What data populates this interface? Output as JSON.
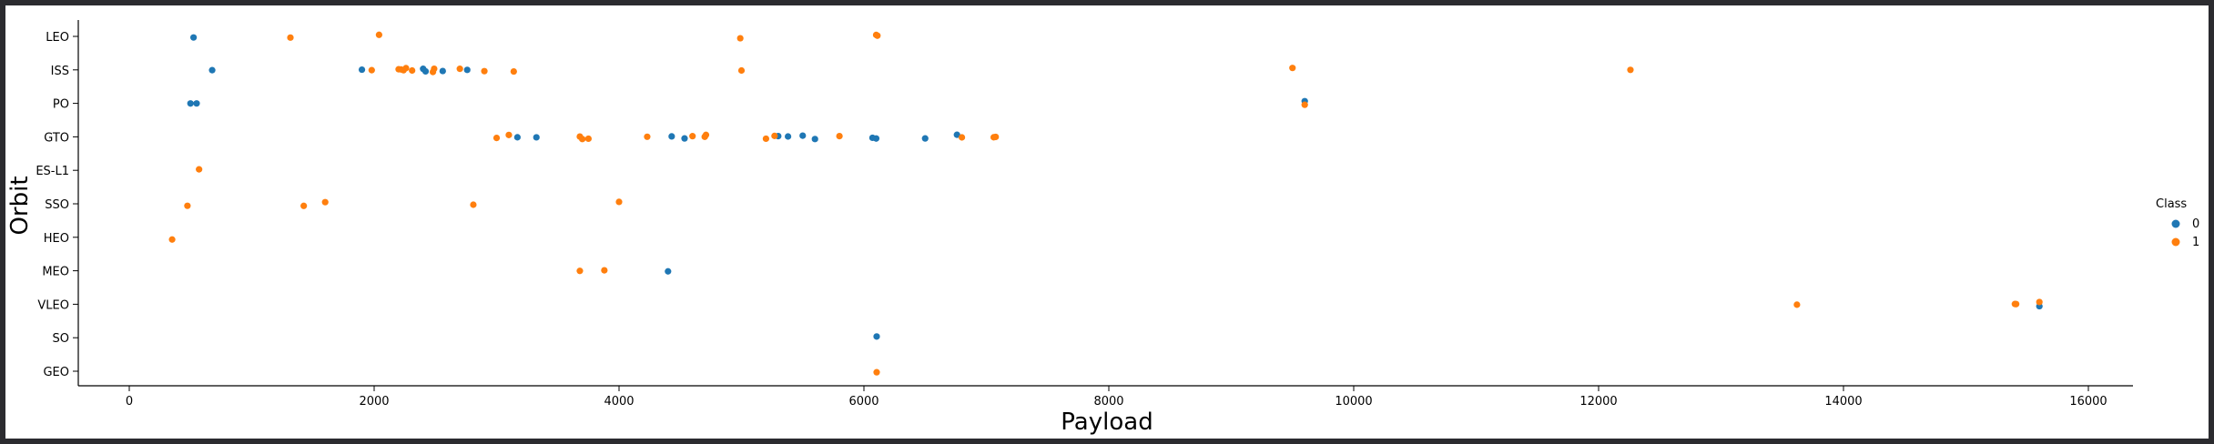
{
  "chart_data": {
    "type": "scatter",
    "title": "",
    "xlabel": "Payload",
    "ylabel": "Orbit",
    "xlim": [
      -500,
      16800
    ],
    "x_ticks": [
      0,
      2000,
      4000,
      6000,
      8000,
      10000,
      12000,
      14000,
      16000
    ],
    "categories": [
      "LEO",
      "ISS",
      "PO",
      "GTO",
      "ES-L1",
      "SSO",
      "HEO",
      "MEO",
      "VLEO",
      "SO",
      "GEO"
    ],
    "grid": false,
    "legend": {
      "title": "Class",
      "position": "right",
      "entries": [
        "0",
        "1"
      ]
    },
    "colors": {
      "0": "#1f77b4",
      "1": "#ff7f0e"
    },
    "series": [
      {
        "name": "0",
        "points": [
          {
            "x": 525,
            "y": "LEO"
          },
          {
            "x": 677,
            "y": "ISS"
          },
          {
            "x": 1900,
            "y": "ISS"
          },
          {
            "x": 2400,
            "y": "ISS"
          },
          {
            "x": 2420,
            "y": "ISS"
          },
          {
            "x": 2560,
            "y": "ISS"
          },
          {
            "x": 2760,
            "y": "ISS"
          },
          {
            "x": 500,
            "y": "PO"
          },
          {
            "x": 550,
            "y": "PO"
          },
          {
            "x": 9600,
            "y": "PO"
          },
          {
            "x": 3170,
            "y": "GTO"
          },
          {
            "x": 3325,
            "y": "GTO"
          },
          {
            "x": 4430,
            "y": "GTO"
          },
          {
            "x": 4535,
            "y": "GTO"
          },
          {
            "x": 5300,
            "y": "GTO"
          },
          {
            "x": 5380,
            "y": "GTO"
          },
          {
            "x": 5500,
            "y": "GTO"
          },
          {
            "x": 5600,
            "y": "GTO"
          },
          {
            "x": 6070,
            "y": "GTO"
          },
          {
            "x": 6100,
            "y": "GTO"
          },
          {
            "x": 6500,
            "y": "GTO"
          },
          {
            "x": 6760,
            "y": "GTO"
          },
          {
            "x": 4400,
            "y": "MEO"
          },
          {
            "x": 15600,
            "y": "VLEO"
          },
          {
            "x": 6104,
            "y": "SO"
          }
        ]
      },
      {
        "name": "1",
        "points": [
          {
            "x": 1316,
            "y": "LEO"
          },
          {
            "x": 2040,
            "y": "LEO"
          },
          {
            "x": 4990,
            "y": "LEO"
          },
          {
            "x": 6100,
            "y": "LEO"
          },
          {
            "x": 6110,
            "y": "LEO"
          },
          {
            "x": 1980,
            "y": "ISS"
          },
          {
            "x": 2200,
            "y": "ISS"
          },
          {
            "x": 2220,
            "y": "ISS"
          },
          {
            "x": 2240,
            "y": "ISS"
          },
          {
            "x": 2260,
            "y": "ISS"
          },
          {
            "x": 2310,
            "y": "ISS"
          },
          {
            "x": 2480,
            "y": "ISS"
          },
          {
            "x": 2490,
            "y": "ISS"
          },
          {
            "x": 2700,
            "y": "ISS"
          },
          {
            "x": 2900,
            "y": "ISS"
          },
          {
            "x": 3140,
            "y": "ISS"
          },
          {
            "x": 5000,
            "y": "ISS"
          },
          {
            "x": 9500,
            "y": "ISS"
          },
          {
            "x": 12260,
            "y": "ISS"
          },
          {
            "x": 9600,
            "y": "PO"
          },
          {
            "x": 3000,
            "y": "GTO"
          },
          {
            "x": 3100,
            "y": "GTO"
          },
          {
            "x": 3680,
            "y": "GTO"
          },
          {
            "x": 3700,
            "y": "GTO"
          },
          {
            "x": 3750,
            "y": "GTO"
          },
          {
            "x": 4230,
            "y": "GTO"
          },
          {
            "x": 4600,
            "y": "GTO"
          },
          {
            "x": 4700,
            "y": "GTO"
          },
          {
            "x": 4710,
            "y": "GTO"
          },
          {
            "x": 5200,
            "y": "GTO"
          },
          {
            "x": 5270,
            "y": "GTO"
          },
          {
            "x": 5800,
            "y": "GTO"
          },
          {
            "x": 6800,
            "y": "GTO"
          },
          {
            "x": 7060,
            "y": "GTO"
          },
          {
            "x": 7076,
            "y": "GTO"
          },
          {
            "x": 570,
            "y": "ES-L1"
          },
          {
            "x": 475,
            "y": "SSO"
          },
          {
            "x": 1425,
            "y": "SSO"
          },
          {
            "x": 1600,
            "y": "SSO"
          },
          {
            "x": 2810,
            "y": "SSO"
          },
          {
            "x": 4000,
            "y": "SSO"
          },
          {
            "x": 350,
            "y": "HEO"
          },
          {
            "x": 3680,
            "y": "MEO"
          },
          {
            "x": 3880,
            "y": "MEO"
          },
          {
            "x": 13620,
            "y": "VLEO"
          },
          {
            "x": 15400,
            "y": "VLEO"
          },
          {
            "x": 15410,
            "y": "VLEO"
          },
          {
            "x": 15600,
            "y": "VLEO"
          },
          {
            "x": 6104,
            "y": "GEO"
          }
        ]
      }
    ]
  }
}
